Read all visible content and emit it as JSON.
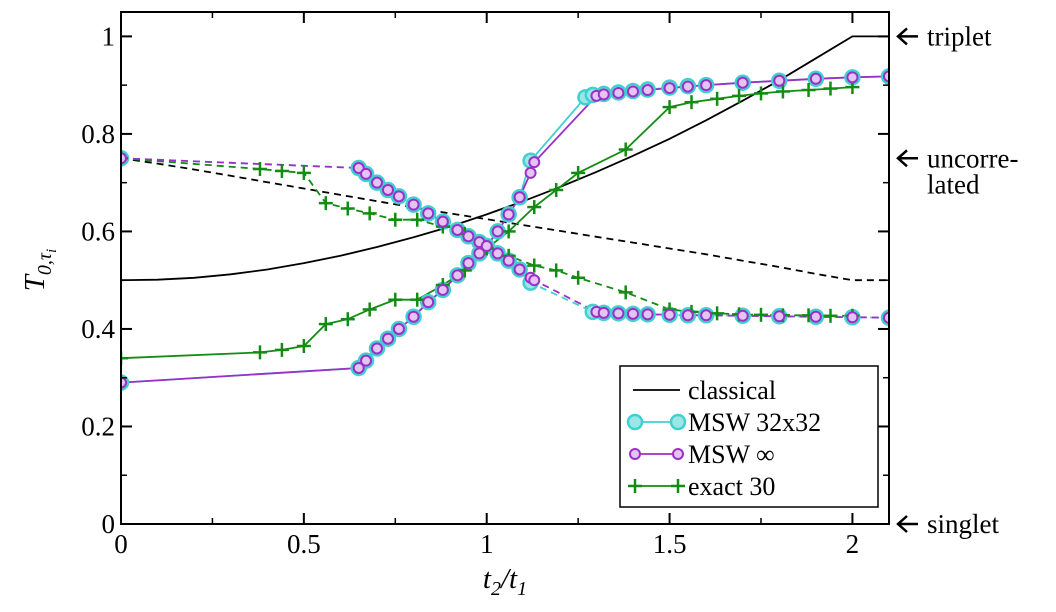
{
  "chart_data": {
    "type": "line",
    "title": "",
    "xlabel": {
      "main": "t",
      "sub1": "2",
      "slash": "/",
      "main2": "t",
      "sub2": "1"
    },
    "ylabel": {
      "main": "T",
      "sub": "0,τ",
      "subsub": "i"
    },
    "xlim": [
      0,
      2.1
    ],
    "ylim": [
      0,
      1.05
    ],
    "x_ticks": [
      {
        "value": 0,
        "label": "0"
      },
      {
        "value": 0.5,
        "label": "0.5"
      },
      {
        "value": 1,
        "label": "1"
      },
      {
        "value": 1.5,
        "label": "1.5"
      },
      {
        "value": 2,
        "label": "2"
      }
    ],
    "y_ticks": [
      {
        "value": 0,
        "label": "0"
      },
      {
        "value": 0.2,
        "label": "0.2"
      },
      {
        "value": 0.4,
        "label": "0.4"
      },
      {
        "value": 0.6,
        "label": "0.6"
      },
      {
        "value": 0.8,
        "label": "0.8"
      },
      {
        "value": 1,
        "label": "1"
      }
    ],
    "legend": {
      "placement": "bottom-right",
      "entries": [
        {
          "label": "classical",
          "color": "#000000",
          "marker": "none"
        },
        {
          "label": "MSW 32x32",
          "color": "#40d0d0",
          "marker": "circle"
        },
        {
          "label": "MSW ∞",
          "color": "#9b30c8",
          "marker": "circle"
        },
        {
          "label": "exact 30",
          "color": "#138c13",
          "marker": "plus"
        }
      ]
    },
    "annotations": [
      {
        "id": "triplet",
        "lines": [
          "triplet"
        ],
        "y": 1.0
      },
      {
        "id": "uncorrelated",
        "lines": [
          "uncorre-",
          "lated"
        ],
        "y": 0.75
      },
      {
        "id": "singlet",
        "lines": [
          "singlet"
        ],
        "y": 0.0
      }
    ],
    "series": [
      {
        "name": "classical-upper",
        "legend_entry": "classical",
        "color": "#000000",
        "dash": "solid",
        "marker": "none",
        "x": [
          0,
          0.1,
          0.2,
          0.3,
          0.4,
          0.5,
          0.6,
          0.7,
          0.8,
          0.9,
          1.0,
          1.1,
          1.2,
          1.3,
          1.4,
          1.5,
          1.6,
          1.7,
          1.8,
          1.9,
          2.0,
          2.1
        ],
        "y": [
          0.5,
          0.501,
          0.505,
          0.512,
          0.522,
          0.535,
          0.55,
          0.568,
          0.588,
          0.61,
          0.635,
          0.662,
          0.691,
          0.722,
          0.755,
          0.79,
          0.828,
          0.868,
          0.91,
          0.955,
          1.0,
          1.0
        ]
      },
      {
        "name": "classical-lower",
        "legend_entry": "classical",
        "color": "#000000",
        "dash": "dashed",
        "marker": "none",
        "x": [
          0,
          0.1,
          0.2,
          0.3,
          0.4,
          0.5,
          0.6,
          0.7,
          0.8,
          0.9,
          1.0,
          1.1,
          1.2,
          1.3,
          1.4,
          1.5,
          1.6,
          1.7,
          1.8,
          1.9,
          2.0,
          2.1
        ],
        "y": [
          0.75,
          0.739,
          0.727,
          0.714,
          0.701,
          0.688,
          0.675,
          0.662,
          0.649,
          0.637,
          0.625,
          0.613,
          0.601,
          0.589,
          0.577,
          0.565,
          0.553,
          0.54,
          0.527,
          0.513,
          0.5,
          0.5
        ]
      },
      {
        "name": "msw32-upper",
        "legend_entry": "MSW 32x32",
        "color": "#40d0d0",
        "dash": "solid",
        "marker": "circle",
        "x": [
          0,
          0.65,
          0.67,
          0.7,
          0.73,
          0.76,
          0.8,
          0.84,
          0.88,
          0.92,
          0.95,
          0.98,
          1.0,
          1.03,
          1.06,
          1.09,
          1.12,
          1.27,
          1.29,
          1.32,
          1.36,
          1.4,
          1.44,
          1.5,
          1.55,
          1.6,
          1.7,
          1.8,
          1.9,
          2.0,
          2.1
        ],
        "y": [
          0.29,
          0.32,
          0.335,
          0.36,
          0.38,
          0.4,
          0.425,
          0.455,
          0.48,
          0.51,
          0.535,
          0.555,
          0.57,
          0.6,
          0.635,
          0.67,
          0.745,
          0.875,
          0.88,
          0.882,
          0.885,
          0.888,
          0.891,
          0.895,
          0.898,
          0.9,
          0.905,
          0.909,
          0.913,
          0.916,
          0.918
        ]
      },
      {
        "name": "msw32-lower",
        "legend_entry": "MSW 32x32",
        "color": "#40d0d0",
        "dash": "dashed",
        "marker": "circle",
        "x": [
          0,
          0.65,
          0.67,
          0.7,
          0.73,
          0.76,
          0.8,
          0.84,
          0.88,
          0.92,
          0.95,
          0.98,
          1.0,
          1.03,
          1.06,
          1.09,
          1.12,
          1.29,
          1.32,
          1.36,
          1.4,
          1.44,
          1.5,
          1.55,
          1.6,
          1.7,
          1.8,
          1.9,
          2.0,
          2.1
        ],
        "y": [
          0.75,
          0.73,
          0.718,
          0.7,
          0.685,
          0.672,
          0.655,
          0.637,
          0.62,
          0.603,
          0.59,
          0.578,
          0.57,
          0.555,
          0.54,
          0.522,
          0.495,
          0.435,
          0.433,
          0.432,
          0.431,
          0.43,
          0.429,
          0.428,
          0.428,
          0.427,
          0.426,
          0.425,
          0.424,
          0.423
        ]
      },
      {
        "name": "mswinf-upper",
        "legend_entry": "MSW ∞",
        "color": "#9b30c8",
        "dash": "solid",
        "marker": "circle",
        "x": [
          0,
          0.65,
          0.67,
          0.7,
          0.73,
          0.76,
          0.8,
          0.84,
          0.88,
          0.92,
          0.95,
          0.98,
          1.0,
          1.03,
          1.06,
          1.09,
          1.12,
          1.13,
          1.3,
          1.32,
          1.36,
          1.4,
          1.44,
          1.5,
          1.55,
          1.6,
          1.7,
          1.8,
          1.9,
          2.0,
          2.1
        ],
        "y": [
          0.29,
          0.32,
          0.335,
          0.36,
          0.38,
          0.4,
          0.425,
          0.455,
          0.48,
          0.51,
          0.535,
          0.555,
          0.57,
          0.6,
          0.635,
          0.67,
          0.72,
          0.742,
          0.878,
          0.881,
          0.884,
          0.887,
          0.89,
          0.894,
          0.897,
          0.9,
          0.905,
          0.909,
          0.913,
          0.916,
          0.918
        ]
      },
      {
        "name": "mswinf-lower",
        "legend_entry": "MSW ∞",
        "color": "#9b30c8",
        "dash": "dashed",
        "marker": "circle",
        "x": [
          0,
          0.65,
          0.67,
          0.7,
          0.73,
          0.76,
          0.8,
          0.84,
          0.88,
          0.92,
          0.95,
          0.98,
          1.0,
          1.03,
          1.06,
          1.09,
          1.12,
          1.13,
          1.3,
          1.32,
          1.36,
          1.4,
          1.44,
          1.5,
          1.55,
          1.6,
          1.7,
          1.8,
          1.9,
          2.0,
          2.1
        ],
        "y": [
          0.75,
          0.73,
          0.718,
          0.7,
          0.685,
          0.672,
          0.655,
          0.637,
          0.62,
          0.603,
          0.59,
          0.578,
          0.57,
          0.555,
          0.54,
          0.522,
          0.505,
          0.5,
          0.435,
          0.433,
          0.432,
          0.431,
          0.43,
          0.429,
          0.428,
          0.428,
          0.427,
          0.426,
          0.425,
          0.424,
          0.423
        ]
      },
      {
        "name": "exact30-upper",
        "legend_entry": "exact 30",
        "color": "#138c13",
        "dash": "solid",
        "marker": "plus",
        "x": [
          0,
          0.38,
          0.44,
          0.5,
          0.56,
          0.62,
          0.68,
          0.75,
          0.81,
          0.88,
          0.94,
          1.0,
          1.06,
          1.13,
          1.19,
          1.25,
          1.38,
          1.5,
          1.56,
          1.63,
          1.69,
          1.75,
          1.81,
          1.88,
          1.94,
          2.0
        ],
        "y": [
          0.34,
          0.352,
          0.357,
          0.365,
          0.41,
          0.42,
          0.44,
          0.46,
          0.46,
          0.49,
          0.52,
          0.565,
          0.6,
          0.65,
          0.685,
          0.72,
          0.768,
          0.855,
          0.865,
          0.872,
          0.878,
          0.883,
          0.887,
          0.89,
          0.893,
          0.896
        ]
      },
      {
        "name": "exact30-lower",
        "legend_entry": "exact 30",
        "color": "#138c13",
        "dash": "dashed",
        "marker": "plus",
        "x": [
          0,
          0.38,
          0.44,
          0.5,
          0.56,
          0.62,
          0.68,
          0.75,
          0.81,
          0.88,
          0.94,
          1.0,
          1.06,
          1.13,
          1.19,
          1.25,
          1.38,
          1.5,
          1.56,
          1.63,
          1.69,
          1.75,
          1.81,
          1.88,
          1.94,
          2.0
        ],
        "y": [
          0.75,
          0.728,
          0.724,
          0.72,
          0.658,
          0.647,
          0.637,
          0.624,
          0.624,
          0.61,
          0.595,
          0.565,
          0.55,
          0.53,
          0.52,
          0.505,
          0.475,
          0.44,
          0.435,
          0.432,
          0.43,
          0.429,
          0.428,
          0.428,
          0.427,
          0.427
        ]
      }
    ]
  }
}
